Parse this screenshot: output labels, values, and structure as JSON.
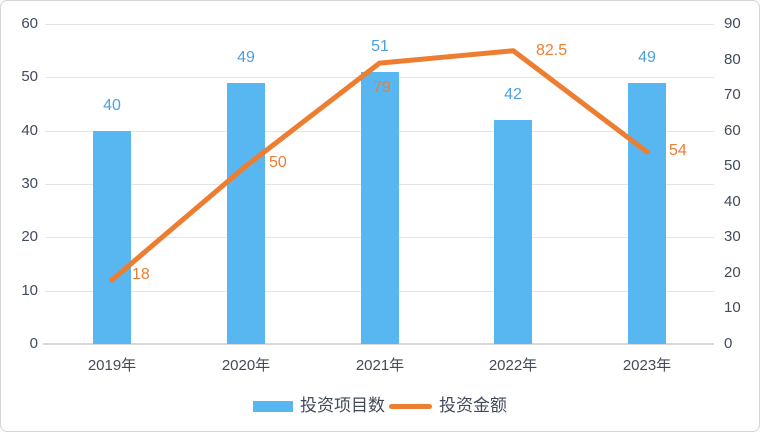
{
  "chart_data": {
    "type": "combo",
    "categories": [
      "2019年",
      "2020年",
      "2021年",
      "2022年",
      "2023年"
    ],
    "series": [
      {
        "name": "投资项目数",
        "type": "bar",
        "axis": "left",
        "values": [
          40,
          49,
          51,
          42,
          49
        ],
        "labels": [
          "40",
          "49",
          "51",
          "42",
          "49"
        ],
        "color": "#58B6F1",
        "label_color": "#4C9FE0"
      },
      {
        "name": "投资金额",
        "type": "line",
        "axis": "right",
        "values": [
          18,
          50,
          79,
          82.5,
          54
        ],
        "labels": [
          "18",
          "50",
          "79",
          "82.5",
          "54"
        ],
        "color": "#ED7D31",
        "label_color": "#ED7D31"
      }
    ],
    "left_axis": {
      "min": 0,
      "max": 60,
      "step": 10,
      "ticks": [
        "0",
        "10",
        "20",
        "30",
        "40",
        "50",
        "60"
      ]
    },
    "right_axis": {
      "min": 0,
      "max": 90,
      "step": 10,
      "ticks": [
        "0",
        "10",
        "20",
        "30",
        "40",
        "50",
        "60",
        "70",
        "80",
        "90"
      ]
    },
    "grid": true,
    "legend_position": "bottom"
  },
  "colors": {
    "axis_text": "#414B5A",
    "gridline": "#E5E5E5",
    "axis_line": "#D9D9D9",
    "border": "#D4D4D4",
    "background": "#FFFFFF"
  }
}
